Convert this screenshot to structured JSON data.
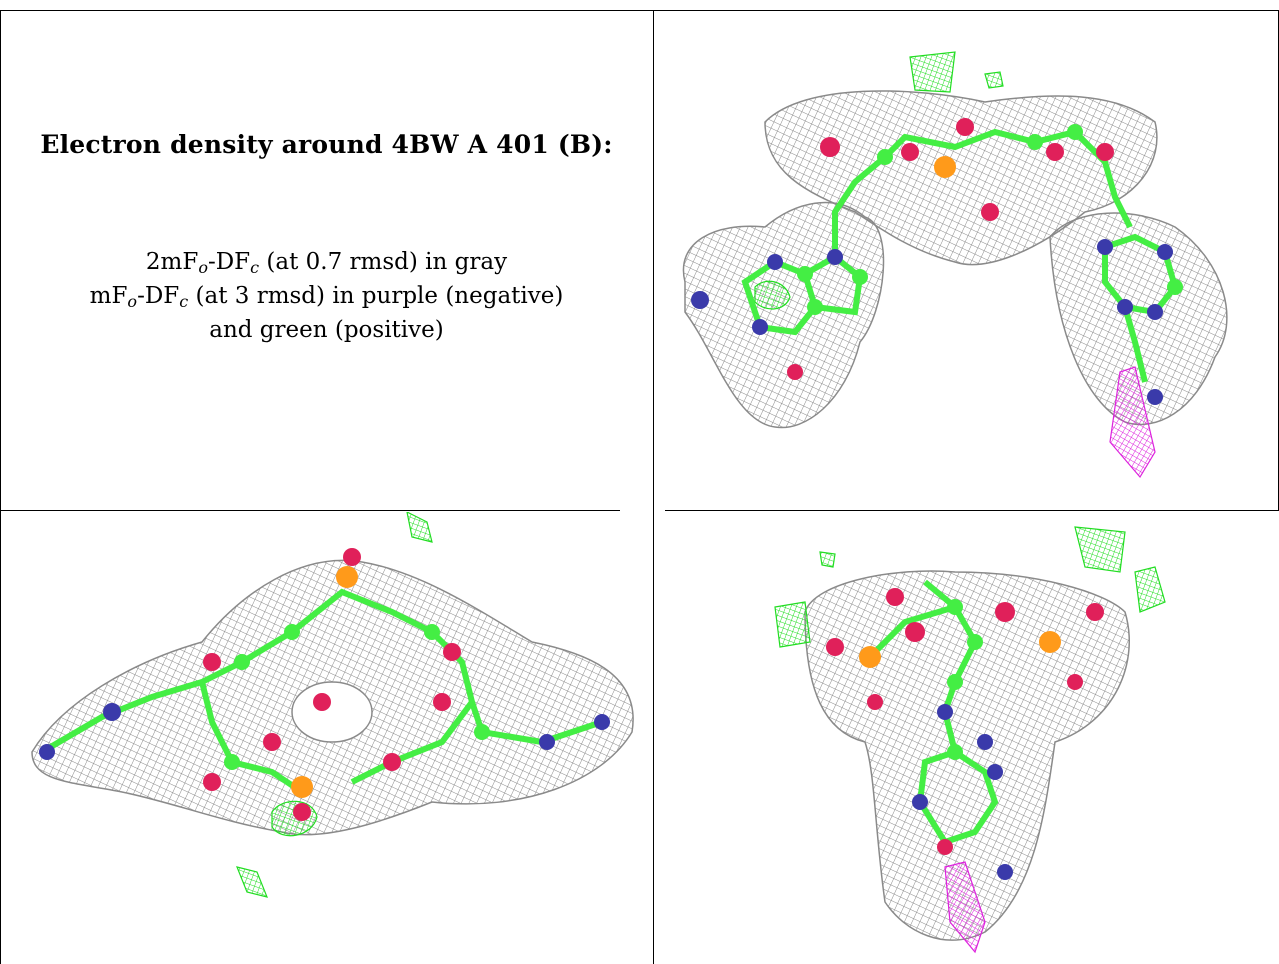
{
  "caption": {
    "title": "Electron density around 4BW A 401 (B):",
    "line1_prefix": "2mF",
    "line1_sub1": "o",
    "line1_mid": "-DF",
    "line1_sub2": "c",
    "line1_suffix": " (at 0.7 rmsd) in gray",
    "line2_prefix": "mF",
    "line2_sub1": "o",
    "line2_mid": "-DF",
    "line2_sub2": "c",
    "line2_suffix": " (at 3 rmsd) in purple (negative)",
    "line3": "and green (positive)"
  },
  "colors": {
    "mesh_2fofc": "#8a8a8a",
    "mesh_positive": "#22dd22",
    "mesh_negative": "#dd22dd",
    "carbon": "#44ee44",
    "nitrogen": "#3a3aaa",
    "oxygen": "#e0205a",
    "phosphorus": "#ff9a1a"
  },
  "panels": [
    {
      "name": "view-top-right",
      "icon": "molecule-density-view-1"
    },
    {
      "name": "view-bottom-left",
      "icon": "molecule-density-view-2"
    },
    {
      "name": "view-bottom-right",
      "icon": "molecule-density-view-3"
    }
  ]
}
